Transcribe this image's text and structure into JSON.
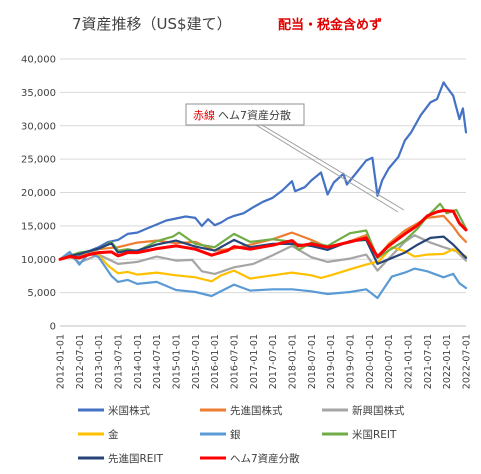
{
  "chart_data": {
    "type": "line",
    "title": "7資産推移（US$建て）",
    "note": "配当・税金含めず",
    "annotation": {
      "prefix": "赤線",
      "text": "ヘム7資産分散"
    },
    "ylim": [
      0,
      40000
    ],
    "yticks": [
      "0",
      "5,000",
      "10,000",
      "15,000",
      "20,000",
      "25,000",
      "30,000",
      "35,000",
      "40,000"
    ],
    "xlim": [
      2012.0,
      2022.5
    ],
    "xticks": [
      "2012-01-01",
      "2012-07-01",
      "2013-01-01",
      "2013-07-01",
      "2014-01-01",
      "2014-07-01",
      "2015-01-01",
      "2015-07-01",
      "2016-01-01",
      "2016-07-01",
      "2017-01-01",
      "2017-07-01",
      "2018-01-01",
      "2018-07-01",
      "2019-01-01",
      "2019-07-01",
      "2020-01-01",
      "2020-07-01",
      "2021-01-01",
      "2021-07-01",
      "2022-01-01",
      "2022-07-01"
    ],
    "grid": true,
    "legend_position": "bottom",
    "series": [
      {
        "name": "米国株式",
        "color": "#4472c4",
        "points": [
          [
            2012.0,
            10000
          ],
          [
            2012.25,
            10800
          ],
          [
            2012.5,
            10500
          ],
          [
            2012.75,
            11200
          ],
          [
            2013.0,
            11800
          ],
          [
            2013.25,
            12600
          ],
          [
            2013.5,
            12900
          ],
          [
            2013.75,
            13800
          ],
          [
            2014.0,
            14000
          ],
          [
            2014.25,
            14600
          ],
          [
            2014.5,
            15200
          ],
          [
            2014.75,
            15800
          ],
          [
            2015.0,
            16100
          ],
          [
            2015.25,
            16400
          ],
          [
            2015.5,
            16200
          ],
          [
            2015.67,
            15000
          ],
          [
            2015.83,
            16000
          ],
          [
            2016.0,
            15100
          ],
          [
            2016.17,
            15500
          ],
          [
            2016.33,
            16100
          ],
          [
            2016.5,
            16500
          ],
          [
            2016.75,
            16900
          ],
          [
            2017.0,
            17800
          ],
          [
            2017.25,
            18600
          ],
          [
            2017.5,
            19200
          ],
          [
            2017.75,
            20300
          ],
          [
            2018.0,
            21700
          ],
          [
            2018.08,
            20200
          ],
          [
            2018.33,
            20800
          ],
          [
            2018.5,
            21800
          ],
          [
            2018.75,
            23000
          ],
          [
            2018.92,
            19700
          ],
          [
            2019.08,
            21500
          ],
          [
            2019.33,
            22800
          ],
          [
            2019.42,
            21200
          ],
          [
            2019.67,
            23000
          ],
          [
            2019.92,
            24800
          ],
          [
            2020.08,
            25200
          ],
          [
            2020.21,
            19500
          ],
          [
            2020.33,
            21800
          ],
          [
            2020.5,
            23600
          ],
          [
            2020.75,
            25300
          ],
          [
            2020.92,
            27800
          ],
          [
            2021.08,
            29000
          ],
          [
            2021.33,
            31600
          ],
          [
            2021.58,
            33500
          ],
          [
            2021.75,
            34000
          ],
          [
            2021.92,
            36500
          ],
          [
            2022.0,
            35800
          ],
          [
            2022.17,
            34500
          ],
          [
            2022.33,
            31000
          ],
          [
            2022.42,
            32600
          ],
          [
            2022.5,
            29000
          ]
        ]
      },
      {
        "name": "先進国株式",
        "color": "#ed7d31",
        "points": [
          [
            2012.0,
            10000
          ],
          [
            2012.25,
            10700
          ],
          [
            2012.5,
            10300
          ],
          [
            2012.75,
            11000
          ],
          [
            2013.0,
            11500
          ],
          [
            2013.5,
            11800
          ],
          [
            2014.0,
            12500
          ],
          [
            2014.5,
            12800
          ],
          [
            2015.0,
            12400
          ],
          [
            2015.5,
            12600
          ],
          [
            2016.0,
            11300
          ],
          [
            2016.5,
            11600
          ],
          [
            2017.0,
            12300
          ],
          [
            2017.5,
            13000
          ],
          [
            2018.0,
            14000
          ],
          [
            2018.5,
            12900
          ],
          [
            2018.92,
            11800
          ],
          [
            2019.5,
            12700
          ],
          [
            2019.92,
            13600
          ],
          [
            2020.21,
            10300
          ],
          [
            2020.5,
            12300
          ],
          [
            2020.92,
            14300
          ],
          [
            2021.25,
            15400
          ],
          [
            2021.5,
            16200
          ],
          [
            2021.92,
            16500
          ],
          [
            2022.17,
            14900
          ],
          [
            2022.33,
            13600
          ],
          [
            2022.5,
            12600
          ]
        ]
      },
      {
        "name": "新興国株式",
        "color": "#a5a5a5",
        "points": [
          [
            2012.0,
            10000
          ],
          [
            2012.25,
            10600
          ],
          [
            2012.5,
            9500
          ],
          [
            2012.75,
            10100
          ],
          [
            2013.0,
            10700
          ],
          [
            2013.5,
            9300
          ],
          [
            2014.0,
            9600
          ],
          [
            2014.5,
            10400
          ],
          [
            2015.0,
            9800
          ],
          [
            2015.42,
            9900
          ],
          [
            2015.67,
            8200
          ],
          [
            2016.0,
            7800
          ],
          [
            2016.5,
            8800
          ],
          [
            2017.0,
            9300
          ],
          [
            2017.5,
            10600
          ],
          [
            2018.0,
            12000
          ],
          [
            2018.5,
            10300
          ],
          [
            2018.92,
            9600
          ],
          [
            2019.5,
            10100
          ],
          [
            2019.92,
            10700
          ],
          [
            2020.21,
            8300
          ],
          [
            2020.5,
            10100
          ],
          [
            2020.92,
            12600
          ],
          [
            2021.17,
            13600
          ],
          [
            2021.58,
            12500
          ],
          [
            2021.92,
            11800
          ],
          [
            2022.25,
            11200
          ],
          [
            2022.5,
            9800
          ]
        ]
      },
      {
        "name": "金",
        "color": "#ffc000",
        "points": [
          [
            2012.0,
            10000
          ],
          [
            2012.25,
            10300
          ],
          [
            2012.5,
            10100
          ],
          [
            2012.75,
            10900
          ],
          [
            2013.0,
            10600
          ],
          [
            2013.25,
            9000
          ],
          [
            2013.5,
            7900
          ],
          [
            2013.75,
            8100
          ],
          [
            2014.0,
            7700
          ],
          [
            2014.5,
            8000
          ],
          [
            2015.0,
            7600
          ],
          [
            2015.5,
            7300
          ],
          [
            2015.92,
            6700
          ],
          [
            2016.17,
            7600
          ],
          [
            2016.5,
            8300
          ],
          [
            2016.92,
            7100
          ],
          [
            2017.5,
            7600
          ],
          [
            2018.0,
            8000
          ],
          [
            2018.5,
            7600
          ],
          [
            2018.75,
            7200
          ],
          [
            2019.0,
            7600
          ],
          [
            2019.5,
            8500
          ],
          [
            2019.92,
            9200
          ],
          [
            2020.25,
            9700
          ],
          [
            2020.58,
            11800
          ],
          [
            2020.92,
            11200
          ],
          [
            2021.17,
            10400
          ],
          [
            2021.5,
            10700
          ],
          [
            2021.92,
            10800
          ],
          [
            2022.17,
            11500
          ],
          [
            2022.5,
            10400
          ]
        ]
      },
      {
        "name": "銀",
        "color": "#5b9bd5",
        "points": [
          [
            2012.0,
            10000
          ],
          [
            2012.25,
            11100
          ],
          [
            2012.5,
            9200
          ],
          [
            2012.75,
            10900
          ],
          [
            2013.0,
            10300
          ],
          [
            2013.33,
            7500
          ],
          [
            2013.5,
            6600
          ],
          [
            2013.75,
            6900
          ],
          [
            2014.0,
            6300
          ],
          [
            2014.5,
            6600
          ],
          [
            2015.0,
            5400
          ],
          [
            2015.5,
            5100
          ],
          [
            2015.92,
            4500
          ],
          [
            2016.5,
            6200
          ],
          [
            2016.92,
            5300
          ],
          [
            2017.5,
            5500
          ],
          [
            2018.0,
            5500
          ],
          [
            2018.5,
            5200
          ],
          [
            2018.92,
            4800
          ],
          [
            2019.5,
            5100
          ],
          [
            2019.92,
            5500
          ],
          [
            2020.21,
            4200
          ],
          [
            2020.58,
            7400
          ],
          [
            2020.92,
            8000
          ],
          [
            2021.17,
            8600
          ],
          [
            2021.5,
            8200
          ],
          [
            2021.92,
            7300
          ],
          [
            2022.17,
            7800
          ],
          [
            2022.33,
            6400
          ],
          [
            2022.5,
            5700
          ]
        ]
      },
      {
        "name": "米国REIT",
        "color": "#70ad47",
        "points": [
          [
            2012.0,
            10000
          ],
          [
            2012.25,
            10500
          ],
          [
            2012.5,
            11000
          ],
          [
            2012.75,
            11200
          ],
          [
            2013.0,
            11500
          ],
          [
            2013.33,
            12600
          ],
          [
            2013.5,
            11300
          ],
          [
            2013.75,
            11500
          ],
          [
            2014.0,
            11200
          ],
          [
            2014.5,
            12700
          ],
          [
            2014.92,
            13400
          ],
          [
            2015.08,
            14000
          ],
          [
            2015.5,
            12300
          ],
          [
            2016.0,
            11800
          ],
          [
            2016.5,
            13800
          ],
          [
            2016.92,
            12600
          ],
          [
            2017.5,
            13000
          ],
          [
            2018.0,
            12600
          ],
          [
            2018.17,
            11400
          ],
          [
            2018.5,
            12500
          ],
          [
            2018.92,
            12000
          ],
          [
            2019.5,
            13900
          ],
          [
            2019.92,
            14300
          ],
          [
            2020.21,
            10200
          ],
          [
            2020.5,
            11300
          ],
          [
            2020.92,
            12800
          ],
          [
            2021.25,
            14600
          ],
          [
            2021.5,
            16400
          ],
          [
            2021.83,
            18300
          ],
          [
            2022.0,
            16900
          ],
          [
            2022.25,
            17400
          ],
          [
            2022.5,
            14600
          ]
        ]
      },
      {
        "name": "先進国REIT",
        "color": "#264478",
        "points": [
          [
            2012.0,
            10000
          ],
          [
            2012.25,
            10500
          ],
          [
            2012.5,
            10800
          ],
          [
            2012.75,
            11200
          ],
          [
            2013.0,
            11600
          ],
          [
            2013.33,
            12400
          ],
          [
            2013.5,
            11000
          ],
          [
            2013.75,
            11300
          ],
          [
            2014.0,
            11300
          ],
          [
            2014.5,
            12200
          ],
          [
            2015.0,
            12800
          ],
          [
            2015.5,
            11900
          ],
          [
            2016.0,
            11300
          ],
          [
            2016.5,
            12900
          ],
          [
            2016.92,
            11800
          ],
          [
            2017.5,
            12300
          ],
          [
            2018.0,
            12300
          ],
          [
            2018.5,
            12000
          ],
          [
            2018.92,
            11400
          ],
          [
            2019.5,
            12700
          ],
          [
            2019.92,
            12900
          ],
          [
            2020.21,
            9300
          ],
          [
            2020.5,
            10000
          ],
          [
            2020.92,
            11000
          ],
          [
            2021.25,
            12200
          ],
          [
            2021.58,
            13200
          ],
          [
            2021.92,
            13400
          ],
          [
            2022.17,
            12200
          ],
          [
            2022.5,
            10200
          ]
        ]
      },
      {
        "name": "ヘム7資産分散",
        "color": "#ff0000",
        "points": [
          [
            2012.0,
            10000
          ],
          [
            2012.25,
            10400
          ],
          [
            2012.5,
            10200
          ],
          [
            2012.75,
            10700
          ],
          [
            2013.0,
            11000
          ],
          [
            2013.33,
            11100
          ],
          [
            2013.5,
            10500
          ],
          [
            2013.75,
            11000
          ],
          [
            2014.0,
            11000
          ],
          [
            2014.5,
            11600
          ],
          [
            2015.0,
            12000
          ],
          [
            2015.5,
            11500
          ],
          [
            2015.92,
            10600
          ],
          [
            2016.33,
            11300
          ],
          [
            2016.5,
            11900
          ],
          [
            2016.92,
            11500
          ],
          [
            2017.5,
            12100
          ],
          [
            2018.0,
            12800
          ],
          [
            2018.17,
            12000
          ],
          [
            2018.5,
            12300
          ],
          [
            2018.92,
            11800
          ],
          [
            2019.5,
            12600
          ],
          [
            2019.92,
            13200
          ],
          [
            2020.21,
            10400
          ],
          [
            2020.5,
            12000
          ],
          [
            2020.92,
            13800
          ],
          [
            2021.25,
            15100
          ],
          [
            2021.5,
            16500
          ],
          [
            2021.75,
            17100
          ],
          [
            2021.92,
            17300
          ],
          [
            2022.17,
            17200
          ],
          [
            2022.33,
            15400
          ],
          [
            2022.5,
            14400
          ]
        ]
      }
    ]
  }
}
